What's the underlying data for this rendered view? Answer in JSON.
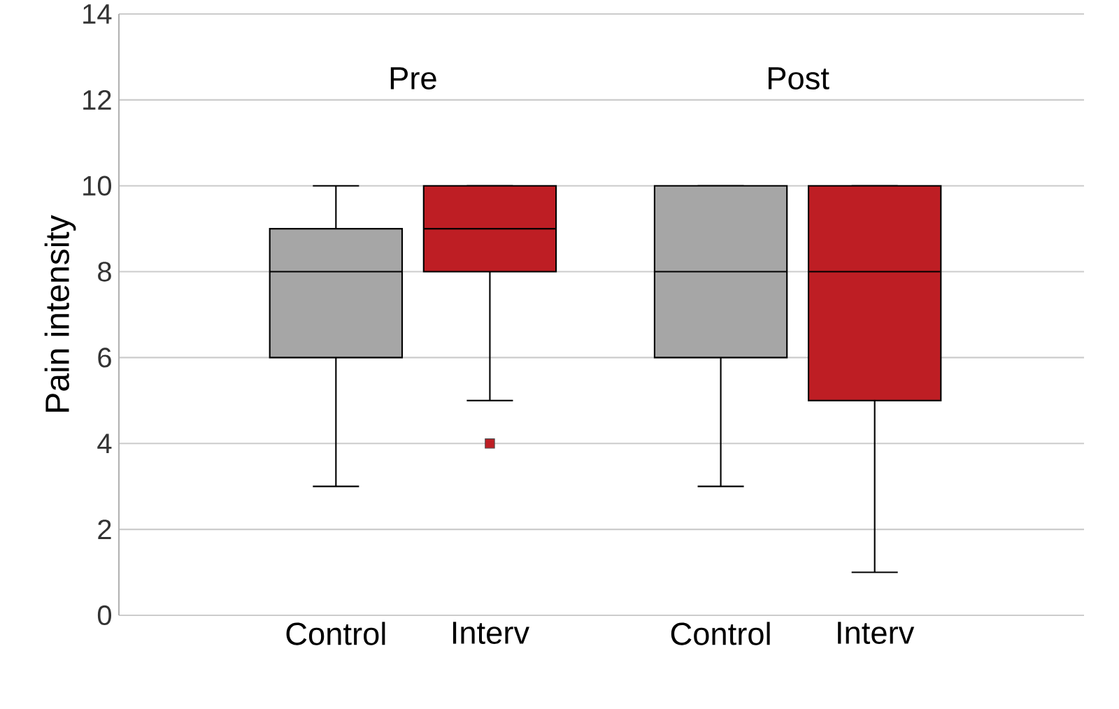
{
  "chart_data": {
    "type": "box",
    "ylabel": "Pain intensity",
    "categories": [
      "Control",
      "Interv",
      "Control",
      "Interv"
    ],
    "boxes": [
      {
        "low": 3,
        "q1": 6,
        "median": 8,
        "q3": 9,
        "high": 10
      },
      {
        "low": 5,
        "q1": 8,
        "median": 9,
        "q3": 10,
        "high": 10,
        "outliers": [
          4
        ]
      },
      {
        "low": 3,
        "q1": 6,
        "median": 8,
        "q3": 10,
        "high": 10
      },
      {
        "low": 1,
        "q1": 5,
        "median": 8,
        "q3": 10,
        "high": 10
      }
    ],
    "colors": [
      "#a6a6a6",
      "#be1e24",
      "#a6a6a6",
      "#be1e24"
    ],
    "annotations": [
      "Pre",
      "Post"
    ],
    "ylim": [
      0,
      14
    ],
    "yticks": [
      0,
      2,
      4,
      6,
      8,
      10,
      12,
      14
    ],
    "grid": "y",
    "marker": "square"
  }
}
